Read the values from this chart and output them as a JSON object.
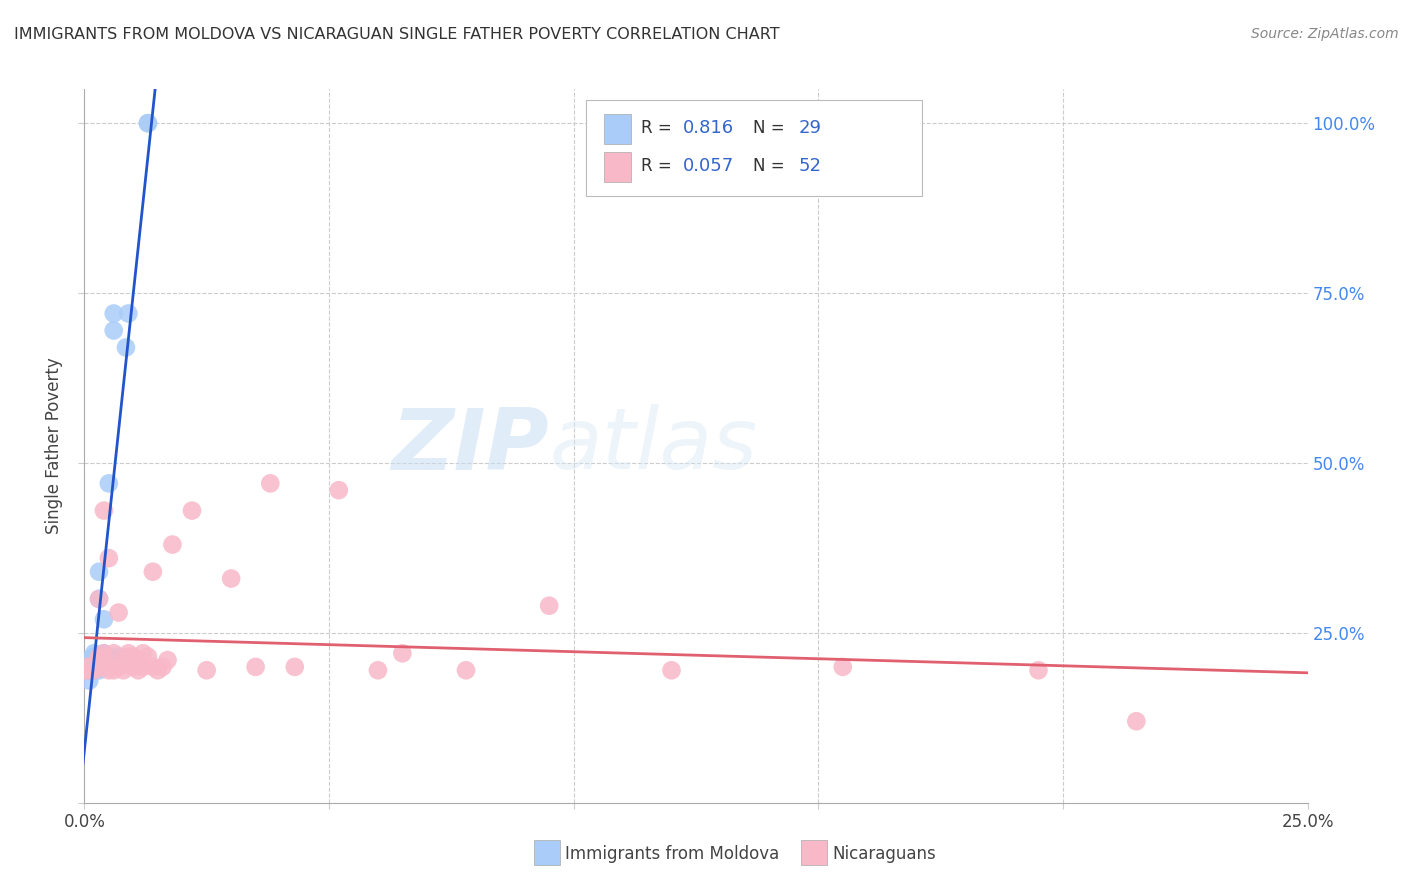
{
  "title": "IMMIGRANTS FROM MOLDOVA VS NICARAGUAN SINGLE FATHER POVERTY CORRELATION CHART",
  "source": "Source: ZipAtlas.com",
  "ylabel": "Single Father Poverty",
  "xlim": [
    0,
    0.25
  ],
  "ylim": [
    0,
    1.05
  ],
  "blue_color": "#aaccf8",
  "pink_color": "#f8b8c8",
  "line_blue": "#2255cc",
  "line_pink": "#e06070",
  "watermark_zip": "ZIP",
  "watermark_atlas": "atlas",
  "legend_r1": "R = ",
  "legend_v1": "0.816",
  "legend_n1_label": "N =",
  "legend_n1_val": "29",
  "legend_r2": "R = ",
  "legend_v2": "0.057",
  "legend_n2_label": "N =",
  "legend_n2_val": "52",
  "moldova_x": [
    0.0005,
    0.0008,
    0.001,
    0.001,
    0.001,
    0.0015,
    0.0015,
    0.002,
    0.002,
    0.002,
    0.002,
    0.002,
    0.003,
    0.003,
    0.003,
    0.003,
    0.003,
    0.004,
    0.004,
    0.004,
    0.005,
    0.005,
    0.006,
    0.006,
    0.007,
    0.0085,
    0.009,
    0.013,
    0.013
  ],
  "moldova_y": [
    0.195,
    0.21,
    0.18,
    0.2,
    0.195,
    0.195,
    0.21,
    0.195,
    0.195,
    0.21,
    0.215,
    0.22,
    0.195,
    0.21,
    0.215,
    0.3,
    0.34,
    0.215,
    0.22,
    0.27,
    0.215,
    0.47,
    0.695,
    0.72,
    0.215,
    0.67,
    0.72,
    1.0,
    1.0
  ],
  "nicaragua_x": [
    0.0005,
    0.0008,
    0.001,
    0.001,
    0.0015,
    0.002,
    0.002,
    0.003,
    0.003,
    0.003,
    0.004,
    0.004,
    0.004,
    0.005,
    0.005,
    0.005,
    0.006,
    0.006,
    0.007,
    0.007,
    0.008,
    0.008,
    0.009,
    0.009,
    0.01,
    0.01,
    0.011,
    0.011,
    0.012,
    0.012,
    0.013,
    0.014,
    0.014,
    0.015,
    0.016,
    0.017,
    0.018,
    0.022,
    0.025,
    0.03,
    0.035,
    0.038,
    0.043,
    0.052,
    0.06,
    0.065,
    0.078,
    0.095,
    0.12,
    0.155,
    0.195,
    0.215
  ],
  "nicaragua_y": [
    0.195,
    0.2,
    0.195,
    0.2,
    0.195,
    0.195,
    0.2,
    0.2,
    0.215,
    0.3,
    0.22,
    0.215,
    0.43,
    0.195,
    0.2,
    0.36,
    0.195,
    0.22,
    0.2,
    0.28,
    0.195,
    0.21,
    0.22,
    0.215,
    0.2,
    0.215,
    0.195,
    0.21,
    0.2,
    0.22,
    0.215,
    0.34,
    0.2,
    0.195,
    0.2,
    0.21,
    0.38,
    0.43,
    0.195,
    0.33,
    0.2,
    0.47,
    0.2,
    0.46,
    0.195,
    0.22,
    0.195,
    0.29,
    0.195,
    0.2,
    0.195,
    0.12
  ]
}
